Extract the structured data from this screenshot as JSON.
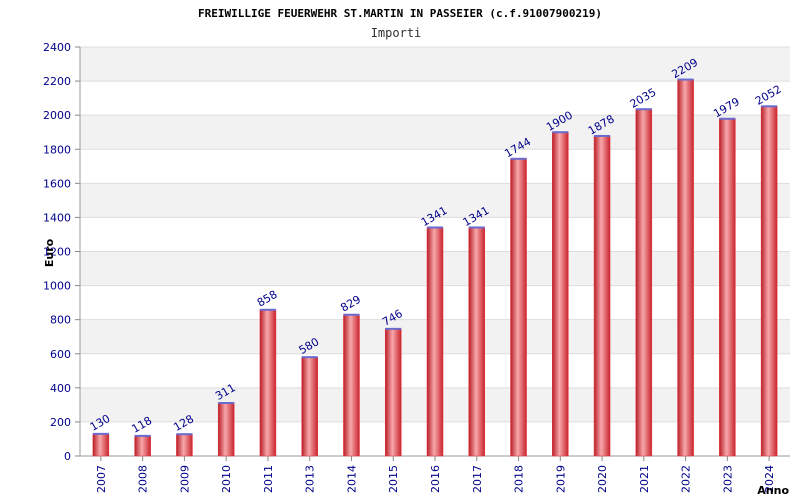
{
  "chart_data": {
    "type": "bar",
    "title": "FREIWILLIGE FEUERWEHR ST.MARTIN IN PASSEIER (c.f.91007900219)",
    "subtitle": "Importi",
    "xlabel": "Anno",
    "ylabel": "Euro",
    "categories": [
      "2007",
      "2008",
      "2009",
      "2010",
      "2011",
      "2013",
      "2014",
      "2015",
      "2016",
      "2017",
      "2018",
      "2019",
      "2020",
      "2021",
      "2022",
      "2023",
      "2024"
    ],
    "values": [
      130,
      118,
      128,
      311,
      858,
      580,
      829,
      746,
      1341,
      1341,
      1744,
      1900,
      1878,
      2035,
      2209,
      1979,
      2052
    ],
    "data_labels": [
      "130",
      "118",
      "128",
      "311",
      "858",
      "580",
      "829",
      "746",
      "1341",
      "1341",
      "1744",
      "1900",
      "1878",
      "2035",
      "2209",
      "1979",
      "2052"
    ],
    "ylim": [
      0,
      2400
    ],
    "y_ticks": [
      "0",
      "200",
      "400",
      "600",
      "800",
      "1000",
      "1200",
      "1400",
      "1600",
      "1800",
      "2000",
      "2200",
      "2400"
    ],
    "grid": true,
    "legend": "none",
    "colors": {
      "bar": "#e8303a",
      "bar_light": "#f7a8ab",
      "bar_dark": "#b81d26",
      "bar_top": "#6a6acf",
      "band": "#f2f2f2",
      "grid": "#dddddd",
      "tick_text": "#00008b"
    }
  }
}
